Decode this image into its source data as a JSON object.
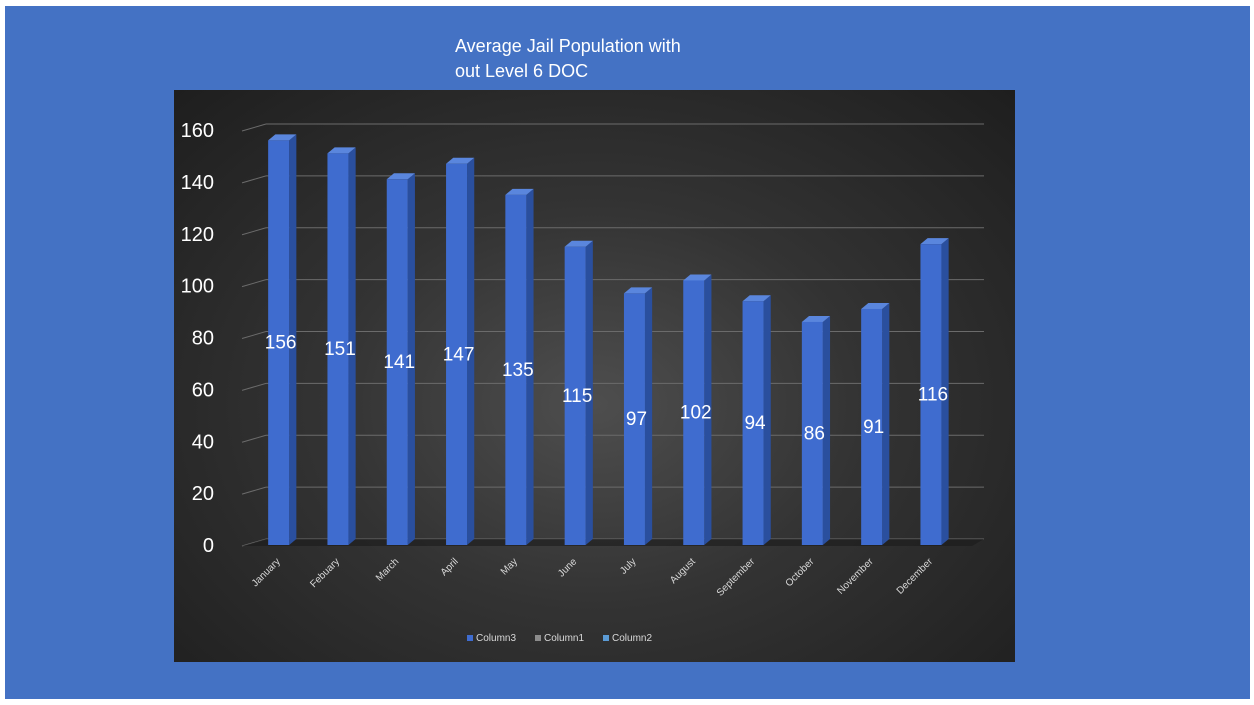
{
  "title_lines": [
    "Average Jail Population with",
    "out Level 6 DOC"
  ],
  "colors": {
    "slide_background": "#4472c4",
    "bar_front": "#3f6ccf",
    "bar_side": "#2a4f9e",
    "bar_top": "#5a86dd",
    "legend_column3": "#3f6ccf",
    "legend_column1": "#8c8c8c",
    "legend_column2": "#5b9bd5"
  },
  "chart_data": {
    "type": "bar",
    "title": "Average Jail Population with out Level 6 DOC",
    "categories": [
      "January",
      "Febuary",
      "March",
      "April",
      "May",
      "June",
      "July",
      "August",
      "September",
      "October",
      "November",
      "December"
    ],
    "series": [
      {
        "name": "Column3",
        "values": [
          156,
          151,
          141,
          147,
          135,
          115,
          97,
          102,
          94,
          86,
          91,
          116
        ]
      }
    ],
    "data_labels": [
      "156",
      "151",
      "141",
      "147",
      "135",
      "115",
      "97",
      "102",
      "94",
      "86",
      "91",
      "116"
    ],
    "ylim": [
      0,
      160
    ],
    "yticks": [
      0,
      20,
      40,
      60,
      80,
      100,
      120,
      140,
      160
    ],
    "xlabel": "",
    "ylabel": "",
    "grid": true,
    "style": "3d-column",
    "legend": {
      "position": "bottom",
      "entries": [
        "Column3",
        "Column1",
        "Column2"
      ]
    }
  }
}
